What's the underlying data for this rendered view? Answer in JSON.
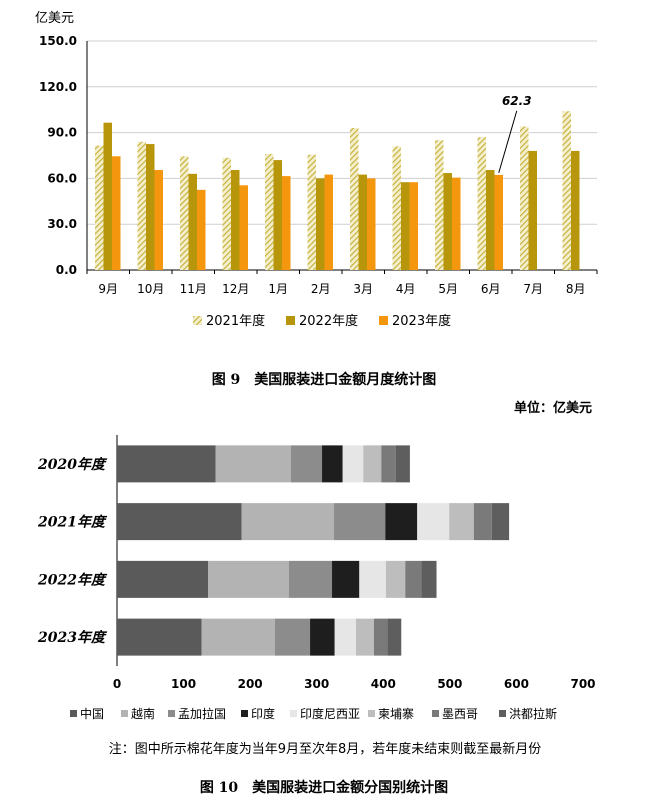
{
  "chart_data": [
    {
      "type": "bar",
      "ylabel": "亿美元",
      "ylim": [
        0,
        150
      ],
      "yticks": [
        "0.0",
        "30.0",
        "60.0",
        "90.0",
        "120.0",
        "150.0"
      ],
      "categories": [
        "9月",
        "10月",
        "11月",
        "12月",
        "1月",
        "2月",
        "3月",
        "4月",
        "5月",
        "6月",
        "7月",
        "8月"
      ],
      "series": [
        {
          "name": "2021年度",
          "color": "#c8b23a",
          "pattern": "hatched",
          "values": [
            81.5,
            84,
            74.5,
            73.5,
            76,
            75.5,
            93,
            81,
            85,
            87,
            94,
            104
          ]
        },
        {
          "name": "2022年度",
          "color": "#b8960c",
          "values": [
            96.5,
            82.5,
            63,
            65.5,
            72,
            60,
            62.5,
            57.5,
            63.5,
            65.5,
            78,
            78
          ]
        },
        {
          "name": "2023年度",
          "color": "#f5960f",
          "values": [
            74.5,
            65.5,
            52.5,
            55.5,
            61.5,
            62.5,
            60,
            57.5,
            60.5,
            62.3,
            null,
            null
          ]
        }
      ],
      "annotation": {
        "text": "62.3",
        "category": "6月",
        "series": "2023年度"
      },
      "legend_position": "bottom",
      "caption": "图 9　美国服装进口金额月度统计图"
    },
    {
      "type": "bar",
      "orientation": "horizontal",
      "stacked": true,
      "unit_text": "单位：亿美元",
      "xlim": [
        0,
        700
      ],
      "xticks": [
        "0",
        "100",
        "200",
        "300",
        "400",
        "500",
        "600",
        "700"
      ],
      "categories": [
        "2020年度",
        "2021年度",
        "2022年度",
        "2023年度"
      ],
      "series": [
        {
          "name": "中国",
          "color": "#5a5a5a",
          "values": [
            148,
            187,
            137,
            127
          ]
        },
        {
          "name": "越南",
          "color": "#b3b3b3",
          "values": [
            113,
            139,
            121,
            110
          ]
        },
        {
          "name": "孟加拉国",
          "color": "#8c8c8c",
          "values": [
            47,
            77,
            65,
            53
          ]
        },
        {
          "name": "印度",
          "color": "#1e1e1e",
          "values": [
            31,
            48,
            41,
            37
          ]
        },
        {
          "name": "印度尼西亚",
          "color": "#e6e6e6",
          "values": [
            31,
            48,
            40,
            32
          ]
        },
        {
          "name": "柬埔寨",
          "color": "#bdbdbd",
          "values": [
            27,
            37,
            29,
            27
          ]
        },
        {
          "name": "墨西哥",
          "color": "#7a7a7a",
          "values": [
            22,
            27,
            24,
            20
          ]
        },
        {
          "name": "洪都拉斯",
          "color": "#5e5e5e",
          "values": [
            21,
            26,
            23,
            21
          ]
        }
      ],
      "legend_position": "bottom",
      "note": "注：图中所示棉花年度为当年9月至次年8月，若年度未结束则截至最新月份",
      "caption": "图 10　美国服装进口金额分国别统计图"
    }
  ]
}
